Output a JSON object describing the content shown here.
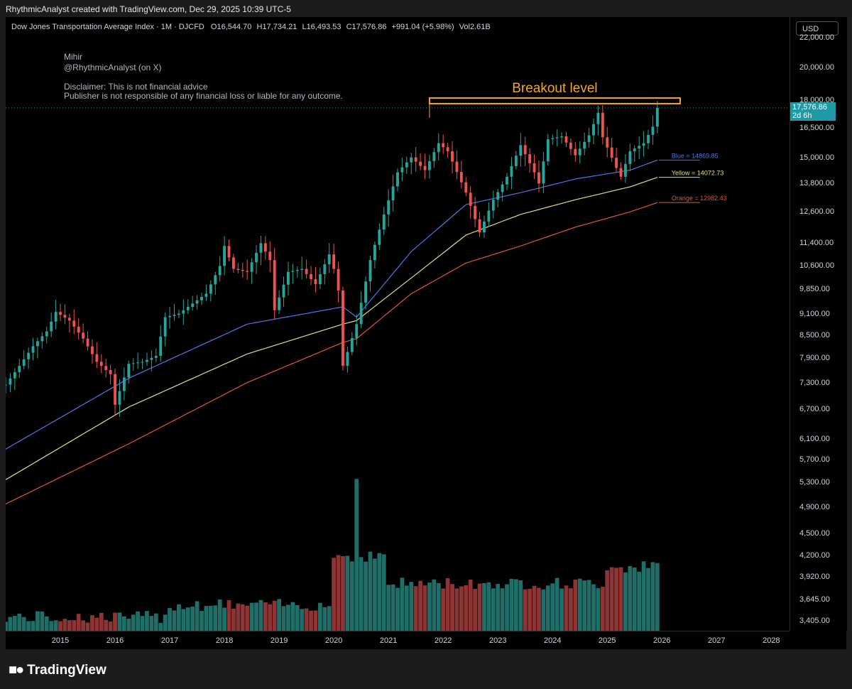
{
  "header": {
    "credit": "RhythmicAnalyst created with TradingView.com, Dec 29, 2025 10:39 UTC-5"
  },
  "legend": {
    "symbol": "Dow Jones Transportation Average Index · 1M · DJCFD",
    "o_label": "O",
    "o_value": "16,544.70",
    "h_label": "H",
    "h_value": "17,734.21",
    "l_label": "L",
    "l_value": "16,493.53",
    "c_label": "C",
    "c_value": "17,576.86",
    "change": "+991.04 (+5.98%)",
    "vol_label": "Vol",
    "vol_value": "2.61B"
  },
  "notes": {
    "author": "Mihir",
    "handle": "@RhythmicAnalyst (on X)",
    "disclaimer": "Disclaimer: This is not financial advice",
    "liability": "Publisher is not responsible of any financial loss or liable for any outcome."
  },
  "annotation": {
    "breakout": "Breakout level"
  },
  "currency": "USD",
  "last_price": {
    "value": "17,576.86",
    "countdown": "2d 6h"
  },
  "footer": {
    "brand": "TradingView"
  },
  "colors": {
    "up": "#26a69a",
    "down": "#ef5350",
    "vol_up": "#1f6f68",
    "vol_down": "#8f3434",
    "blue": "#4a78e8",
    "yellow": "#e6e07a",
    "orange": "#e0553c",
    "breakout": "#f5a623",
    "accent": "#1e9aa7"
  },
  "chart_data": {
    "type": "candlestick",
    "title": "Dow Jones Transportation Average Index · 1M · DJCFD",
    "y_scale": "log",
    "y_ticks": [
      22000,
      20000,
      18000,
      16500,
      15000,
      13800,
      12600,
      11400,
      10600,
      9850,
      9100,
      8500,
      7900,
      7300,
      6700,
      6100,
      5700,
      5300,
      4900,
      4500,
      4200,
      3920,
      3645,
      3405
    ],
    "y_tick_labels": [
      "22,000.00",
      "20,000.00",
      "18,000.00",
      "16,500.00",
      "15,000.00",
      "13,800.00",
      "12,600.00",
      "11,400.00",
      "10,600.00",
      "9,850.00",
      "9,100.00",
      "8,500.00",
      "7,900.00",
      "7,300.00",
      "6,700.00",
      "6,100.00",
      "5,700.00",
      "5,300.00",
      "4,900.00",
      "4,500.00",
      "4,200.00",
      "3,920.00",
      "3,645.00",
      "3,405.00"
    ],
    "ylim": [
      3300,
      23500
    ],
    "x_ticks": [
      "2015",
      "2016",
      "2017",
      "2018",
      "2019",
      "2020",
      "2021",
      "2022",
      "2023",
      "2024",
      "2025",
      "2026",
      "2027",
      "2028"
    ],
    "xlim": [
      "2014-01",
      "2028-05"
    ],
    "breakout_level": 17734,
    "last_close": 17576.86,
    "close": [
      [
        "2014-01",
        7250
      ],
      [
        "2014-04",
        7700
      ],
      [
        "2014-07",
        8200
      ],
      [
        "2014-10",
        8600
      ],
      [
        "2014-12",
        9150
      ],
      [
        "2015-03",
        8900
      ],
      [
        "2015-06",
        8400
      ],
      [
        "2015-09",
        7800
      ],
      [
        "2015-12",
        7500
      ],
      [
        "2016-01",
        6800
      ],
      [
        "2016-04",
        7750
      ],
      [
        "2016-07",
        7800
      ],
      [
        "2016-10",
        7950
      ],
      [
        "2016-12",
        9000
      ],
      [
        "2017-03",
        9100
      ],
      [
        "2017-06",
        9400
      ],
      [
        "2017-09",
        9700
      ],
      [
        "2017-12",
        10600
      ],
      [
        "2018-01",
        11300
      ],
      [
        "2018-03",
        10500
      ],
      [
        "2018-06",
        10400
      ],
      [
        "2018-09",
        11400
      ],
      [
        "2018-11",
        10800
      ],
      [
        "2018-12",
        9200
      ],
      [
        "2019-03",
        10400
      ],
      [
        "2019-06",
        10500
      ],
      [
        "2019-09",
        10000
      ],
      [
        "2019-12",
        11000
      ],
      [
        "2020-01",
        10500
      ],
      [
        "2020-02",
        9800
      ],
      [
        "2020-03",
        7700
      ],
      [
        "2020-06",
        8800
      ],
      [
        "2020-09",
        10800
      ],
      [
        "2020-12",
        12500
      ],
      [
        "2021-03",
        14300
      ],
      [
        "2021-06",
        15000
      ],
      [
        "2021-09",
        14400
      ],
      [
        "2021-12",
        15700
      ],
      [
        "2022-02",
        15300
      ],
      [
        "2022-06",
        13400
      ],
      [
        "2022-09",
        11800
      ],
      [
        "2022-12",
        13100
      ],
      [
        "2023-03",
        14100
      ],
      [
        "2023-06",
        15600
      ],
      [
        "2023-09",
        14300
      ],
      [
        "2023-10",
        13800
      ],
      [
        "2023-12",
        15900
      ],
      [
        "2024-03",
        16050
      ],
      [
        "2024-06",
        15100
      ],
      [
        "2024-09",
        16100
      ],
      [
        "2024-11",
        17300
      ],
      [
        "2024-12",
        16000
      ],
      [
        "2025-03",
        14500
      ],
      [
        "2025-04",
        14100
      ],
      [
        "2025-06",
        15300
      ],
      [
        "2025-09",
        15700
      ],
      [
        "2025-11",
        16550
      ],
      [
        "2025-12",
        17576.86
      ]
    ],
    "series": [
      {
        "name": "Blue",
        "last": 14869.85,
        "values": [
          [
            "2014-01",
            5900
          ],
          [
            "2016-04",
            7400
          ],
          [
            "2018-06",
            8800
          ],
          [
            "2020-03",
            9300
          ],
          [
            "2020-06",
            9000
          ],
          [
            "2021-06",
            11100
          ],
          [
            "2022-06",
            12900
          ],
          [
            "2023-06",
            13400
          ],
          [
            "2024-06",
            14000
          ],
          [
            "2025-06",
            14400
          ],
          [
            "2025-12",
            14869.85
          ]
        ]
      },
      {
        "name": "Yellow",
        "last": 14072.73,
        "values": [
          [
            "2014-01",
            5350
          ],
          [
            "2016-04",
            6750
          ],
          [
            "2018-06",
            8000
          ],
          [
            "2020-03",
            8800
          ],
          [
            "2020-06",
            8900
          ],
          [
            "2021-06",
            10200
          ],
          [
            "2022-06",
            11700
          ],
          [
            "2023-06",
            12500
          ],
          [
            "2024-06",
            13100
          ],
          [
            "2025-06",
            13650
          ],
          [
            "2025-12",
            14072.73
          ]
        ]
      },
      {
        "name": "Orange",
        "last": 12982.43,
        "values": [
          [
            "2014-01",
            4950
          ],
          [
            "2016-04",
            6000
          ],
          [
            "2018-06",
            7300
          ],
          [
            "2020-03",
            8300
          ],
          [
            "2020-06",
            8400
          ],
          [
            "2021-06",
            9700
          ],
          [
            "2022-06",
            10700
          ],
          [
            "2023-06",
            11300
          ],
          [
            "2024-06",
            12000
          ],
          [
            "2025-06",
            12600
          ],
          [
            "2025-12",
            12982.43
          ]
        ]
      }
    ],
    "series_labels": [
      "Blue = 14869.85",
      "Yellow = 14072.73",
      "Orange = 12982.43"
    ]
  }
}
